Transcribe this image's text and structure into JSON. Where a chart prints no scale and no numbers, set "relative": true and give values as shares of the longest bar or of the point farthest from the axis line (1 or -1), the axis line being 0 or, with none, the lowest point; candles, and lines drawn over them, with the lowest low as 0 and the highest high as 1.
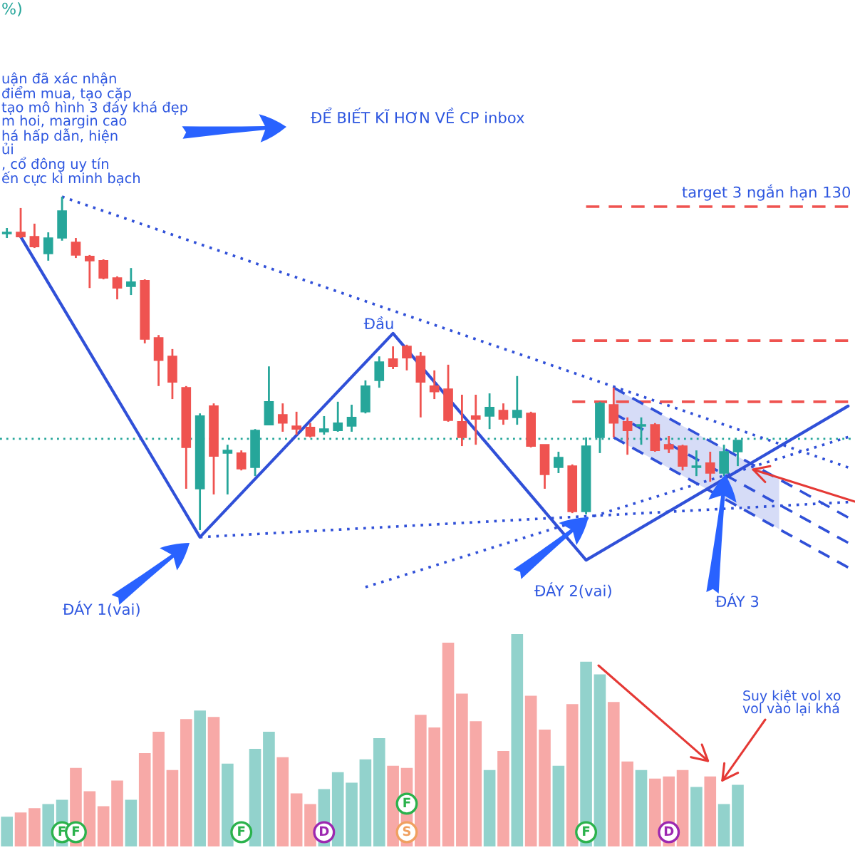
{
  "chart_data": [
    {
      "type": "candlestick",
      "relative": true,
      "categories": [
        null,
        null,
        null,
        null,
        null,
        null,
        null,
        null,
        null,
        null,
        null,
        null,
        null,
        null,
        null,
        null,
        null,
        null,
        null,
        null,
        null,
        null,
        null,
        null,
        null,
        null,
        null,
        null,
        null,
        null,
        null,
        null,
        null,
        null,
        null,
        null,
        null,
        null,
        null,
        null,
        null,
        null,
        null,
        null,
        null,
        null,
        null,
        null,
        null,
        null,
        null,
        null,
        null,
        null,
        null,
        null,
        null,
        null,
        null,
        null,
        null,
        null
      ],
      "ohlc": [
        [
          0.889,
          0.906,
          0.876,
          0.893
        ],
        [
          0.893,
          0.966,
          0.876,
          0.88
        ],
        [
          0.88,
          0.919,
          0.846,
          0.85
        ],
        [
          0.829,
          0.893,
          0.808,
          0.876
        ],
        [
          0.876,
          1.0,
          0.868,
          0.957
        ],
        [
          0.863,
          0.876,
          0.816,
          0.825
        ],
        [
          0.821,
          0.825,
          0.726,
          0.808
        ],
        [
          0.808,
          0.812,
          0.752,
          0.756
        ],
        [
          0.756,
          0.761,
          0.692,
          0.726
        ],
        [
          0.731,
          0.786,
          0.705,
          0.744
        ],
        [
          0.748,
          0.752,
          0.56,
          0.573
        ],
        [
          0.577,
          0.585,
          0.432,
          0.509
        ],
        [
          0.521,
          0.543,
          0.393,
          0.444
        ],
        [
          0.427,
          0.432,
          0.124,
          0.248
        ],
        [
          0.124,
          0.35,
          0.0,
          0.342
        ],
        [
          0.372,
          0.38,
          0.107,
          0.222
        ],
        [
          0.231,
          0.256,
          0.107,
          0.239
        ],
        [
          0.231,
          0.239,
          0.179,
          0.184
        ],
        [
          0.188,
          0.303,
          0.162,
          0.299
        ],
        [
          0.316,
          0.491,
          0.316,
          0.385
        ],
        [
          0.346,
          0.38,
          0.295,
          0.321
        ],
        [
          0.312,
          0.355,
          0.286,
          0.303
        ],
        [
          0.308,
          0.321,
          0.278,
          0.282
        ],
        [
          0.295,
          0.342,
          0.286,
          0.303
        ],
        [
          0.299,
          0.385,
          0.295,
          0.321
        ],
        [
          0.312,
          0.376,
          0.295,
          0.338
        ],
        [
          0.355,
          0.449,
          0.35,
          0.432
        ],
        [
          0.449,
          0.521,
          0.427,
          0.504
        ],
        [
          0.513,
          0.551,
          0.483,
          0.491
        ],
        [
          0.551,
          0.556,
          0.479,
          0.517
        ],
        [
          0.521,
          0.534,
          0.338,
          0.444
        ],
        [
          0.432,
          0.479,
          0.393,
          0.415
        ],
        [
          0.423,
          0.496,
          0.325,
          0.329
        ],
        [
          0.325,
          0.406,
          0.252,
          0.278
        ],
        [
          0.342,
          0.406,
          0.256,
          0.333
        ],
        [
          0.342,
          0.41,
          0.303,
          0.368
        ],
        [
          0.359,
          0.38,
          0.316,
          0.333
        ],
        [
          0.338,
          0.462,
          0.316,
          0.359
        ],
        [
          0.35,
          0.355,
          0.248,
          0.252
        ],
        [
          0.256,
          0.256,
          0.124,
          0.167
        ],
        [
          0.188,
          0.235,
          0.171,
          0.218
        ],
        [
          0.192,
          0.197,
          0.051,
          0.056
        ],
        [
          0.056,
          0.278,
          0.047,
          0.252
        ],
        [
          0.278,
          0.385,
          0.231,
          0.38
        ],
        [
          0.376,
          0.427,
          0.278,
          0.321
        ],
        [
          0.325,
          0.338,
          0.226,
          0.299
        ],
        [
          0.312,
          0.338,
          0.256,
          0.316
        ],
        [
          0.316,
          0.321,
          0.235,
          0.239
        ],
        [
          0.256,
          0.282,
          0.231,
          0.244
        ],
        [
          0.252,
          0.256,
          0.179,
          0.192
        ],
        [
          0.188,
          0.239,
          0.162,
          0.192
        ],
        [
          0.201,
          0.235,
          0.145,
          0.171
        ],
        [
          0.171,
          0.256,
          0.162,
          0.235
        ],
        [
          0.235,
          0.269,
          0.192,
          0.269
        ],
        null,
        null,
        null,
        null,
        null,
        null,
        null,
        null
      ],
      "colors": [
        "#26a69a",
        "#ef5350",
        "#ef5350",
        "#26a69a",
        "#26a69a",
        "#ef5350",
        "#ef5350",
        "#ef5350",
        "#ef5350",
        "#26a69a",
        "#ef5350",
        "#ef5350",
        "#ef5350",
        "#ef5350",
        "#26a69a",
        "#ef5350",
        "#26a69a",
        "#ef5350",
        "#26a69a",
        "#26a69a",
        "#ef5350",
        "#ef5350",
        "#ef5350",
        "#26a69a",
        "#26a69a",
        "#26a69a",
        "#26a69a",
        "#26a69a",
        "#ef5350",
        "#ef5350",
        "#ef5350",
        "#ef5350",
        "#ef5350",
        "#ef5350",
        "#ef5350",
        "#26a69a",
        "#ef5350",
        "#26a69a",
        "#ef5350",
        "#ef5350",
        "#26a69a",
        "#ef5350",
        "#26a69a",
        "#26a69a",
        "#ef5350",
        "#ef5350",
        "#26a69a",
        "#ef5350",
        "#ef5350",
        "#ef5350",
        "#26a69a",
        "#ef5350",
        "#26a69a",
        "#26a69a",
        null,
        null,
        null,
        null,
        null,
        null,
        null,
        null
      ],
      "series": [
        {
          "type": "line",
          "color": "#3050d8",
          "line_style": "solid",
          "values": [
            null,
            0.88,
            null,
            null,
            null,
            null,
            null,
            null,
            null,
            null,
            null,
            null,
            null,
            null,
            -0.021,
            null,
            null,
            null,
            null,
            null,
            null,
            null,
            null,
            null,
            null,
            null,
            null,
            null,
            0.59,
            null,
            null,
            null,
            null,
            null,
            null,
            null,
            null,
            null,
            null,
            null,
            null,
            null,
            -0.09,
            null,
            null,
            null,
            null,
            null,
            null,
            null,
            null,
            null,
            null,
            null,
            null,
            null,
            null,
            null,
            null,
            null,
            null,
            0.372
          ]
        },
        {
          "type": "line",
          "color": "#3050d8",
          "line_style": "dotted",
          "values": [
            null,
            null,
            null,
            null,
            1.0,
            null,
            null,
            null,
            null,
            null,
            null,
            null,
            null,
            null,
            null,
            null,
            null,
            null,
            null,
            null,
            null,
            null,
            null,
            null,
            null,
            null,
            null,
            null,
            null,
            null,
            null,
            null,
            null,
            null,
            null,
            null,
            null,
            null,
            null,
            null,
            null,
            null,
            null,
            null,
            null,
            null,
            null,
            null,
            null,
            null,
            null,
            null,
            null,
            null,
            null,
            null,
            null,
            null,
            null,
            null,
            null,
            0.188
          ]
        },
        {
          "type": "line",
          "color": "#3050d8",
          "line_style": "dotted",
          "values": [
            null,
            null,
            null,
            null,
            null,
            null,
            null,
            null,
            null,
            null,
            null,
            null,
            null,
            null,
            -0.021,
            null,
            null,
            null,
            null,
            null,
            null,
            null,
            null,
            null,
            null,
            null,
            null,
            null,
            null,
            null,
            null,
            null,
            null,
            null,
            null,
            null,
            null,
            null,
            null,
            null,
            null,
            null,
            null,
            null,
            null,
            null,
            null,
            null,
            null,
            null,
            null,
            null,
            null,
            null,
            null,
            null,
            null,
            null,
            null,
            null,
            null,
            0.084
          ]
        },
        {
          "type": "line",
          "color": "#3050d8",
          "line_style": "dotted",
          "values": [
            null,
            null,
            null,
            null,
            null,
            null,
            null,
            null,
            null,
            null,
            null,
            null,
            null,
            null,
            null,
            null,
            null,
            null,
            null,
            null,
            null,
            null,
            null,
            null,
            null,
            null,
            -0.171,
            null,
            null,
            null,
            null,
            null,
            null,
            null,
            null,
            null,
            null,
            null,
            null,
            null,
            null,
            null,
            null,
            null,
            null,
            null,
            null,
            null,
            null,
            null,
            null,
            null,
            null,
            null,
            null,
            null,
            null,
            null,
            null,
            null,
            null,
            0.279
          ]
        },
        {
          "type": "line",
          "name": "target 3 ngắn hạn 130",
          "color": "#ef5350",
          "line_style": "dashed",
          "values": [
            null,
            null,
            null,
            null,
            null,
            null,
            null,
            null,
            null,
            null,
            null,
            null,
            null,
            null,
            null,
            null,
            null,
            null,
            null,
            null,
            null,
            null,
            null,
            null,
            null,
            null,
            null,
            null,
            null,
            null,
            null,
            null,
            null,
            null,
            null,
            null,
            null,
            null,
            null,
            null,
            null,
            null,
            0.97,
            null,
            null,
            null,
            null,
            null,
            null,
            null,
            null,
            null,
            null,
            null,
            null,
            null,
            null,
            null,
            null,
            null,
            null,
            0.97
          ]
        },
        {
          "type": "line",
          "color": "#ef5350",
          "line_style": "dashed",
          "values": [
            null,
            null,
            null,
            null,
            null,
            null,
            null,
            null,
            null,
            null,
            null,
            null,
            null,
            null,
            null,
            null,
            null,
            null,
            null,
            null,
            null,
            null,
            null,
            null,
            null,
            null,
            null,
            null,
            null,
            null,
            null,
            null,
            null,
            null,
            null,
            null,
            null,
            null,
            null,
            null,
            null,
            0.568,
            null,
            null,
            null,
            null,
            null,
            null,
            null,
            null,
            null,
            null,
            null,
            null,
            null,
            null,
            null,
            null,
            null,
            null,
            null,
            0.568
          ]
        },
        {
          "type": "line",
          "color": "#ef5350",
          "line_style": "dashed",
          "values": [
            null,
            null,
            null,
            null,
            null,
            null,
            null,
            null,
            null,
            null,
            null,
            null,
            null,
            null,
            null,
            null,
            null,
            null,
            null,
            null,
            null,
            null,
            null,
            null,
            null,
            null,
            null,
            null,
            null,
            null,
            null,
            null,
            null,
            null,
            null,
            null,
            null,
            null,
            null,
            null,
            null,
            0.385,
            null,
            null,
            null,
            null,
            null,
            null,
            null,
            null,
            null,
            null,
            null,
            null,
            null,
            null,
            null,
            null,
            null,
            null,
            null,
            0.385
          ]
        },
        {
          "type": "line",
          "color": "#3050d8",
          "line_style": "dashed",
          "values": [
            null,
            null,
            null,
            null,
            null,
            null,
            null,
            null,
            null,
            null,
            null,
            null,
            null,
            null,
            null,
            null,
            null,
            null,
            null,
            null,
            null,
            null,
            null,
            null,
            null,
            null,
            null,
            null,
            null,
            null,
            null,
            null,
            null,
            null,
            null,
            null,
            null,
            null,
            null,
            null,
            null,
            null,
            null,
            null,
            0.35,
            null,
            null,
            null,
            null,
            null,
            null,
            null,
            null,
            null,
            null,
            null,
            null,
            null,
            null,
            null,
            null,
            -0.038
          ],
          "lower": [
            null,
            null,
            null,
            null,
            null,
            null,
            null,
            null,
            null,
            null,
            null,
            null,
            null,
            null,
            null,
            null,
            null,
            null,
            null,
            null,
            null,
            null,
            null,
            null,
            null,
            null,
            null,
            null,
            null,
            null,
            null,
            null,
            null,
            null,
            null,
            null,
            null,
            null,
            null,
            null,
            null,
            null,
            null,
            null,
            0.278,
            null,
            null,
            null,
            null,
            null,
            null,
            null,
            null,
            null,
            null,
            null,
            0.003,
            null,
            null,
            null,
            null,
            null
          ],
          "upper": [
            null,
            null,
            null,
            null,
            null,
            null,
            null,
            null,
            null,
            null,
            null,
            null,
            null,
            null,
            null,
            null,
            null,
            null,
            null,
            null,
            null,
            null,
            null,
            null,
            null,
            null,
            null,
            null,
            null,
            null,
            null,
            null,
            null,
            null,
            null,
            null,
            null,
            null,
            null,
            null,
            null,
            null,
            null,
            null,
            0.427,
            null,
            null,
            null,
            null,
            null,
            null,
            null,
            null,
            null,
            null,
            null,
            0.152,
            null,
            null,
            null,
            null,
            null
          ]
        },
        {
          "type": "line",
          "color": "#3050d8",
          "line_style": "dashed",
          "values": [
            null,
            null,
            null,
            null,
            null,
            null,
            null,
            null,
            null,
            null,
            null,
            null,
            null,
            null,
            null,
            null,
            null,
            null,
            null,
            null,
            null,
            null,
            null,
            null,
            null,
            null,
            null,
            null,
            null,
            null,
            null,
            null,
            null,
            null,
            null,
            null,
            null,
            null,
            null,
            null,
            null,
            null,
            null,
            null,
            0.427,
            null,
            null,
            null,
            null,
            null,
            null,
            null,
            null,
            null,
            null,
            null,
            null,
            null,
            null,
            null,
            null,
            0.038
          ]
        },
        {
          "type": "line",
          "color": "#3050d8",
          "line_style": "dashed",
          "values": [
            null,
            null,
            null,
            null,
            null,
            null,
            null,
            null,
            null,
            null,
            null,
            null,
            null,
            null,
            null,
            null,
            null,
            null,
            null,
            null,
            null,
            null,
            null,
            null,
            null,
            null,
            null,
            null,
            null,
            null,
            null,
            null,
            null,
            null,
            null,
            null,
            null,
            null,
            null,
            null,
            null,
            null,
            null,
            null,
            0.278,
            null,
            null,
            null,
            null,
            null,
            null,
            null,
            null,
            null,
            null,
            null,
            null,
            null,
            null,
            null,
            null,
            -0.112
          ]
        }
      ],
      "ref_lines": [
        {
          "axis": "y",
          "value": 0.274,
          "color": "#26a69a",
          "line_style": "dotted"
        }
      ],
      "annotations": [
        "%)",
        "uận đã xác nhận\nđiểm mua, tạo cặp\ntạo mô hình 3 đáy khá đẹp\nm hoi, margin cao\nhá hấp dẫn, hiện\nủi\n, cổ đông uy tín\nến cực kì minh bạch",
        "ĐỂ BIẾT KĨ HƠN VỀ CP inbox",
        "Đầu",
        "ĐÁY 1(vai)",
        "ĐÁY 2(vai)",
        "ĐÁY 3"
      ]
    },
    {
      "type": "bar",
      "relative": true,
      "categories": [
        null,
        null,
        null,
        null,
        null,
        null,
        null,
        null,
        null,
        null,
        null,
        null,
        null,
        null,
        null,
        null,
        null,
        null,
        null,
        null,
        null,
        null,
        null,
        null,
        null,
        null,
        null,
        null,
        null,
        null,
        null,
        null,
        null,
        null,
        null,
        null,
        null,
        null,
        null,
        null,
        null,
        null,
        null,
        null,
        null,
        null,
        null,
        null,
        null,
        null,
        null,
        null,
        null,
        null,
        null,
        null,
        null,
        null,
        null,
        null,
        null,
        null
      ],
      "values": [
        0.14,
        0.16,
        0.18,
        0.2,
        0.22,
        0.37,
        0.26,
        0.19,
        0.31,
        0.22,
        0.44,
        0.54,
        0.36,
        0.6,
        0.64,
        0.61,
        0.39,
        null,
        0.46,
        0.54,
        0.42,
        0.25,
        0.2,
        0.27,
        0.35,
        0.3,
        0.41,
        0.51,
        0.38,
        0.37,
        0.62,
        0.56,
        0.96,
        0.72,
        0.59,
        0.36,
        0.45,
        1.0,
        0.71,
        0.55,
        0.38,
        0.67,
        0.87,
        0.81,
        0.68,
        0.4,
        0.36,
        0.32,
        0.33,
        0.36,
        0.28,
        0.33,
        0.2,
        0.29,
        null,
        null,
        null,
        null,
        null,
        null,
        null,
        null
      ],
      "colors": [
        "#92d2cc",
        "#f7a9a7",
        "#f7a9a7",
        "#92d2cc",
        "#92d2cc",
        "#f7a9a7",
        "#f7a9a7",
        "#f7a9a7",
        "#f7a9a7",
        "#92d2cc",
        "#f7a9a7",
        "#f7a9a7",
        "#f7a9a7",
        "#f7a9a7",
        "#92d2cc",
        "#f7a9a7",
        "#92d2cc",
        "#f7a9a7",
        "#92d2cc",
        "#92d2cc",
        "#f7a9a7",
        "#f7a9a7",
        "#f7a9a7",
        "#92d2cc",
        "#92d2cc",
        "#92d2cc",
        "#92d2cc",
        "#92d2cc",
        "#f7a9a7",
        "#f7a9a7",
        "#f7a9a7",
        "#f7a9a7",
        "#f7a9a7",
        "#f7a9a7",
        "#f7a9a7",
        "#92d2cc",
        "#f7a9a7",
        "#92d2cc",
        "#f7a9a7",
        "#f7a9a7",
        "#92d2cc",
        "#f7a9a7",
        "#92d2cc",
        "#92d2cc",
        "#f7a9a7",
        "#f7a9a7",
        "#92d2cc",
        "#f7a9a7",
        "#f7a9a7",
        "#f7a9a7",
        "#92d2cc",
        "#f7a9a7",
        "#92d2cc",
        "#92d2cc",
        null,
        null,
        null,
        null,
        null,
        null,
        null,
        null
      ],
      "annotations": [
        "Suy kiệt vol xo\nvol vào lại khá",
        "F",
        "F",
        "F",
        "D",
        "F",
        "S",
        "F",
        "D"
      ]
    }
  ]
}
